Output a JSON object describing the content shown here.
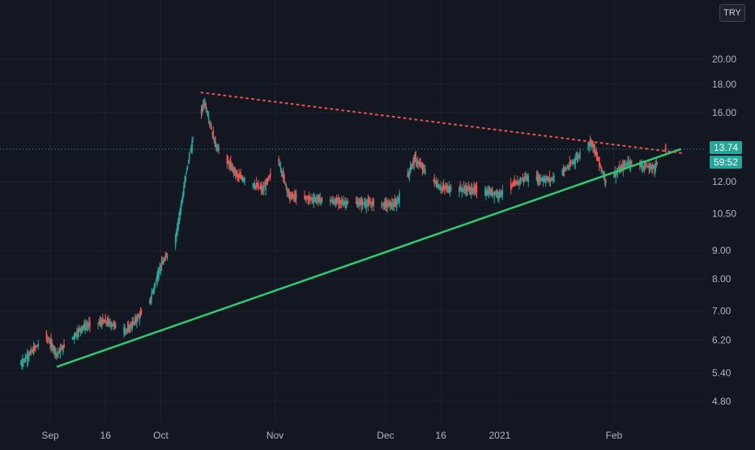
{
  "currency": "TRY",
  "colors": {
    "background": "#131722",
    "grid": "#1e222d",
    "axis_text": "#b2b5be",
    "up": "#26a69a",
    "down": "#ef5350",
    "trendline_support": "#2ecc71",
    "trendline_resistance": "#f0544a",
    "tag_bg": "#26a69a"
  },
  "last_price_label": "13.74",
  "countdown_label": "59:52",
  "chart_data": {
    "type": "candlestick",
    "title": "",
    "ylabel": "",
    "xlabel": "",
    "y_scale": "log",
    "y_ticks": [
      "4.80",
      "5.40",
      "6.20",
      "7.00",
      "8.00",
      "9.00",
      "10.50",
      "12.00",
      "13.74",
      "16.00",
      "18.00",
      "20.00"
    ],
    "x_ticks": [
      "Sep",
      "16",
      "Oct",
      "Nov",
      "Dec",
      "16",
      "2021",
      "Feb"
    ],
    "last_price": 13.74,
    "price_anchors": [
      [
        "2020-08-24",
        5.6
      ],
      [
        "2020-08-31",
        6.3
      ],
      [
        "2020-09-03",
        5.85
      ],
      [
        "2020-09-10",
        6.55
      ],
      [
        "2020-09-16",
        6.7
      ],
      [
        "2020-09-22",
        6.45
      ],
      [
        "2020-09-28",
        7.2
      ],
      [
        "2020-10-01",
        8.4
      ],
      [
        "2020-10-05",
        9.3
      ],
      [
        "2020-10-09",
        13.5
      ],
      [
        "2020-10-13",
        16.8
      ],
      [
        "2020-10-16",
        14.0
      ],
      [
        "2020-10-22",
        12.3
      ],
      [
        "2020-10-29",
        11.6
      ],
      [
        "2020-11-02",
        13.2
      ],
      [
        "2020-11-05",
        11.3
      ],
      [
        "2020-11-20",
        11.0
      ],
      [
        "2020-12-04",
        10.9
      ],
      [
        "2020-12-09",
        13.2
      ],
      [
        "2020-12-16",
        11.7
      ],
      [
        "2020-12-25",
        11.6
      ],
      [
        "2021-01-01",
        11.4
      ],
      [
        "2021-01-08",
        12.2
      ],
      [
        "2021-01-15",
        12.1
      ],
      [
        "2021-01-20",
        12.8
      ],
      [
        "2021-01-26",
        14.2
      ],
      [
        "2021-01-30",
        12.0
      ],
      [
        "2021-02-05",
        13.0
      ],
      [
        "2021-02-12",
        12.7
      ],
      [
        "2021-02-15",
        13.74
      ]
    ],
    "trendlines": [
      {
        "name": "support",
        "style": "solid",
        "start": [
          "2020-09-03",
          5.55
        ],
        "end": [
          "2021-02-19",
          13.74
        ]
      },
      {
        "name": "resistance",
        "style": "dotted",
        "start": [
          "2020-10-12",
          17.4
        ],
        "end": [
          "2021-02-20",
          13.5
        ]
      }
    ],
    "last_price_line": {
      "style": "dotted",
      "value": 13.74
    }
  }
}
